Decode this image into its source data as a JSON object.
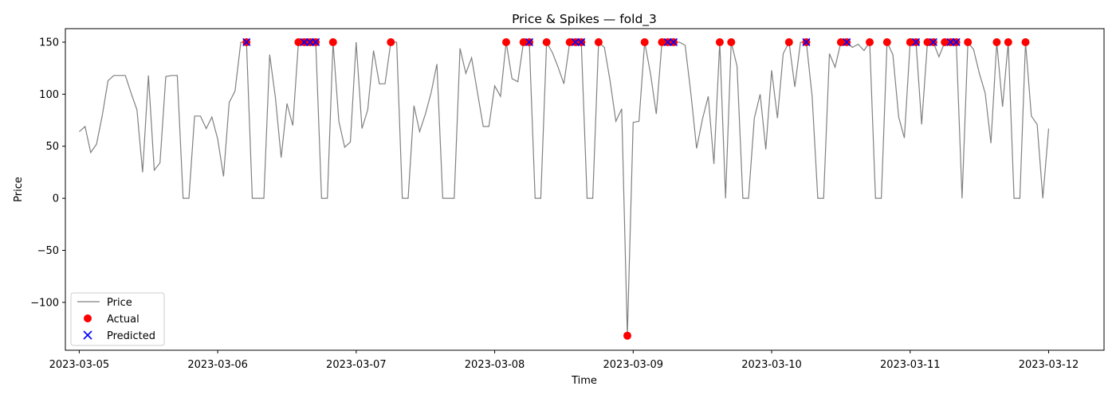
{
  "chart_data": {
    "type": "line",
    "title": "Price & Spikes — fold_3",
    "xlabel": "Time",
    "ylabel": "Price",
    "xlim": [
      -0.1,
      7.4
    ],
    "ylim": [
      -146,
      163
    ],
    "grid": false,
    "legend_placement": "lower-left",
    "x_ticks": [
      {
        "value": 0,
        "label": "2023-03-05"
      },
      {
        "value": 1,
        "label": "2023-03-06"
      },
      {
        "value": 2,
        "label": "2023-03-07"
      },
      {
        "value": 3,
        "label": "2023-03-08"
      },
      {
        "value": 4,
        "label": "2023-03-09"
      },
      {
        "value": 5,
        "label": "2023-03-10"
      },
      {
        "value": 6,
        "label": "2023-03-11"
      },
      {
        "value": 7,
        "label": "2023-03-12"
      }
    ],
    "y_ticks": [
      -100,
      -50,
      0,
      50,
      100,
      150
    ],
    "series": [
      {
        "name": "Price",
        "kind": "line",
        "color": "#808080",
        "points": [
          [
            0.0,
            64
          ],
          [
            0.042,
            69
          ],
          [
            0.083,
            44
          ],
          [
            0.125,
            52
          ],
          [
            0.167,
            80
          ],
          [
            0.208,
            113
          ],
          [
            0.25,
            118
          ],
          [
            0.292,
            118
          ],
          [
            0.333,
            118
          ],
          [
            0.375,
            101
          ],
          [
            0.417,
            85
          ],
          [
            0.458,
            25
          ],
          [
            0.5,
            118
          ],
          [
            0.542,
            27
          ],
          [
            0.583,
            34
          ],
          [
            0.625,
            117
          ],
          [
            0.667,
            118
          ],
          [
            0.708,
            118
          ],
          [
            0.75,
            0
          ],
          [
            0.792,
            0
          ],
          [
            0.833,
            79
          ],
          [
            0.875,
            79
          ],
          [
            0.917,
            67
          ],
          [
            0.958,
            78
          ],
          [
            1.0,
            57
          ],
          [
            1.042,
            21
          ],
          [
            1.083,
            92
          ],
          [
            1.125,
            103
          ],
          [
            1.167,
            150
          ],
          [
            1.208,
            150
          ],
          [
            1.25,
            0
          ],
          [
            1.292,
            0
          ],
          [
            1.333,
            0
          ],
          [
            1.375,
            138
          ],
          [
            1.417,
            96
          ],
          [
            1.458,
            39
          ],
          [
            1.5,
            91
          ],
          [
            1.542,
            70
          ],
          [
            1.583,
            150
          ],
          [
            1.625,
            150
          ],
          [
            1.667,
            150
          ],
          [
            1.708,
            150
          ],
          [
            1.75,
            0
          ],
          [
            1.792,
            0
          ],
          [
            1.833,
            150
          ],
          [
            1.875,
            74
          ],
          [
            1.917,
            49
          ],
          [
            1.958,
            54
          ],
          [
            2.0,
            150
          ],
          [
            2.042,
            67
          ],
          [
            2.083,
            85
          ],
          [
            2.125,
            142
          ],
          [
            2.167,
            110
          ],
          [
            2.208,
            110
          ],
          [
            2.25,
            150
          ],
          [
            2.292,
            150
          ],
          [
            2.333,
            0
          ],
          [
            2.375,
            0
          ],
          [
            2.417,
            89
          ],
          [
            2.458,
            64
          ],
          [
            2.5,
            81
          ],
          [
            2.542,
            102
          ],
          [
            2.583,
            129
          ],
          [
            2.625,
            0
          ],
          [
            2.667,
            0
          ],
          [
            2.708,
            0
          ],
          [
            2.75,
            144
          ],
          [
            2.792,
            120
          ],
          [
            2.833,
            135
          ],
          [
            2.875,
            102
          ],
          [
            2.917,
            69
          ],
          [
            2.958,
            69
          ],
          [
            3.0,
            108
          ],
          [
            3.042,
            98
          ],
          [
            3.083,
            150
          ],
          [
            3.125,
            115
          ],
          [
            3.167,
            112
          ],
          [
            3.208,
            150
          ],
          [
            3.25,
            150
          ],
          [
            3.292,
            0
          ],
          [
            3.333,
            0
          ],
          [
            3.375,
            150
          ],
          [
            3.417,
            140
          ],
          [
            3.458,
            126
          ],
          [
            3.5,
            110
          ],
          [
            3.542,
            150
          ],
          [
            3.583,
            150
          ],
          [
            3.625,
            150
          ],
          [
            3.667,
            0
          ],
          [
            3.708,
            0
          ],
          [
            3.75,
            150
          ],
          [
            3.792,
            145
          ],
          [
            3.833,
            113
          ],
          [
            3.875,
            74
          ],
          [
            3.917,
            86
          ],
          [
            3.958,
            -132
          ],
          [
            4.0,
            73
          ],
          [
            4.042,
            74
          ],
          [
            4.083,
            150
          ],
          [
            4.125,
            120
          ],
          [
            4.167,
            81
          ],
          [
            4.208,
            150
          ],
          [
            4.25,
            150
          ],
          [
            4.292,
            150
          ],
          [
            4.333,
            150
          ],
          [
            4.375,
            147
          ],
          [
            4.417,
            100
          ],
          [
            4.458,
            48
          ],
          [
            4.5,
            76
          ],
          [
            4.542,
            98
          ],
          [
            4.583,
            33
          ],
          [
            4.625,
            150
          ],
          [
            4.667,
            0
          ],
          [
            4.708,
            150
          ],
          [
            4.75,
            127
          ],
          [
            4.792,
            0
          ],
          [
            4.833,
            0
          ],
          [
            4.875,
            77
          ],
          [
            4.917,
            100
          ],
          [
            4.958,
            47
          ],
          [
            5.0,
            123
          ],
          [
            5.042,
            77
          ],
          [
            5.083,
            139
          ],
          [
            5.125,
            150
          ],
          [
            5.167,
            107
          ],
          [
            5.208,
            150
          ],
          [
            5.25,
            150
          ],
          [
            5.292,
            98
          ],
          [
            5.333,
            0
          ],
          [
            5.375,
            0
          ],
          [
            5.417,
            139
          ],
          [
            5.458,
            126
          ],
          [
            5.5,
            150
          ],
          [
            5.542,
            150
          ],
          [
            5.583,
            145
          ],
          [
            5.625,
            148
          ],
          [
            5.667,
            142
          ],
          [
            5.708,
            150
          ],
          [
            5.75,
            0
          ],
          [
            5.792,
            0
          ],
          [
            5.833,
            150
          ],
          [
            5.875,
            138
          ],
          [
            5.917,
            78
          ],
          [
            5.958,
            58
          ],
          [
            6.0,
            150
          ],
          [
            6.042,
            150
          ],
          [
            6.083,
            71
          ],
          [
            6.125,
            150
          ],
          [
            6.167,
            150
          ],
          [
            6.208,
            136
          ],
          [
            6.25,
            150
          ],
          [
            6.292,
            150
          ],
          [
            6.333,
            150
          ],
          [
            6.375,
            0
          ],
          [
            6.417,
            150
          ],
          [
            6.458,
            143
          ],
          [
            6.5,
            120
          ],
          [
            6.542,
            101
          ],
          [
            6.583,
            53
          ],
          [
            6.625,
            150
          ],
          [
            6.667,
            88
          ],
          [
            6.708,
            150
          ],
          [
            6.75,
            0
          ],
          [
            6.792,
            0
          ],
          [
            6.833,
            150
          ],
          [
            6.875,
            79
          ],
          [
            6.917,
            71
          ],
          [
            6.958,
            0
          ],
          [
            7.0,
            67
          ]
        ]
      },
      {
        "name": "Actual",
        "kind": "scatter-dot",
        "color": "#ff0000",
        "points": [
          [
            1.208,
            150
          ],
          [
            1.583,
            150
          ],
          [
            1.625,
            150
          ],
          [
            1.667,
            150
          ],
          [
            1.708,
            150
          ],
          [
            1.833,
            150
          ],
          [
            2.25,
            150
          ],
          [
            3.083,
            150
          ],
          [
            3.208,
            150
          ],
          [
            3.25,
            150
          ],
          [
            3.375,
            150
          ],
          [
            3.542,
            150
          ],
          [
            3.583,
            150
          ],
          [
            3.625,
            150
          ],
          [
            3.75,
            150
          ],
          [
            3.958,
            -132
          ],
          [
            4.083,
            150
          ],
          [
            4.208,
            150
          ],
          [
            4.25,
            150
          ],
          [
            4.292,
            150
          ],
          [
            4.625,
            150
          ],
          [
            4.708,
            150
          ],
          [
            5.125,
            150
          ],
          [
            5.25,
            150
          ],
          [
            5.5,
            150
          ],
          [
            5.542,
            150
          ],
          [
            5.708,
            150
          ],
          [
            5.833,
            150
          ],
          [
            6.0,
            150
          ],
          [
            6.042,
            150
          ],
          [
            6.125,
            150
          ],
          [
            6.167,
            150
          ],
          [
            6.25,
            150
          ],
          [
            6.292,
            150
          ],
          [
            6.333,
            150
          ],
          [
            6.417,
            150
          ],
          [
            6.625,
            150
          ],
          [
            6.708,
            150
          ],
          [
            6.833,
            150
          ]
        ]
      },
      {
        "name": "Predicted",
        "kind": "scatter-x",
        "color": "#0000ff",
        "points": [
          [
            1.208,
            150
          ],
          [
            1.625,
            150
          ],
          [
            1.667,
            150
          ],
          [
            1.708,
            150
          ],
          [
            3.25,
            150
          ],
          [
            3.583,
            150
          ],
          [
            3.625,
            150
          ],
          [
            4.25,
            150
          ],
          [
            4.292,
            150
          ],
          [
            5.25,
            150
          ],
          [
            5.542,
            150
          ],
          [
            6.042,
            150
          ],
          [
            6.167,
            150
          ],
          [
            6.292,
            150
          ],
          [
            6.333,
            150
          ]
        ]
      }
    ]
  }
}
